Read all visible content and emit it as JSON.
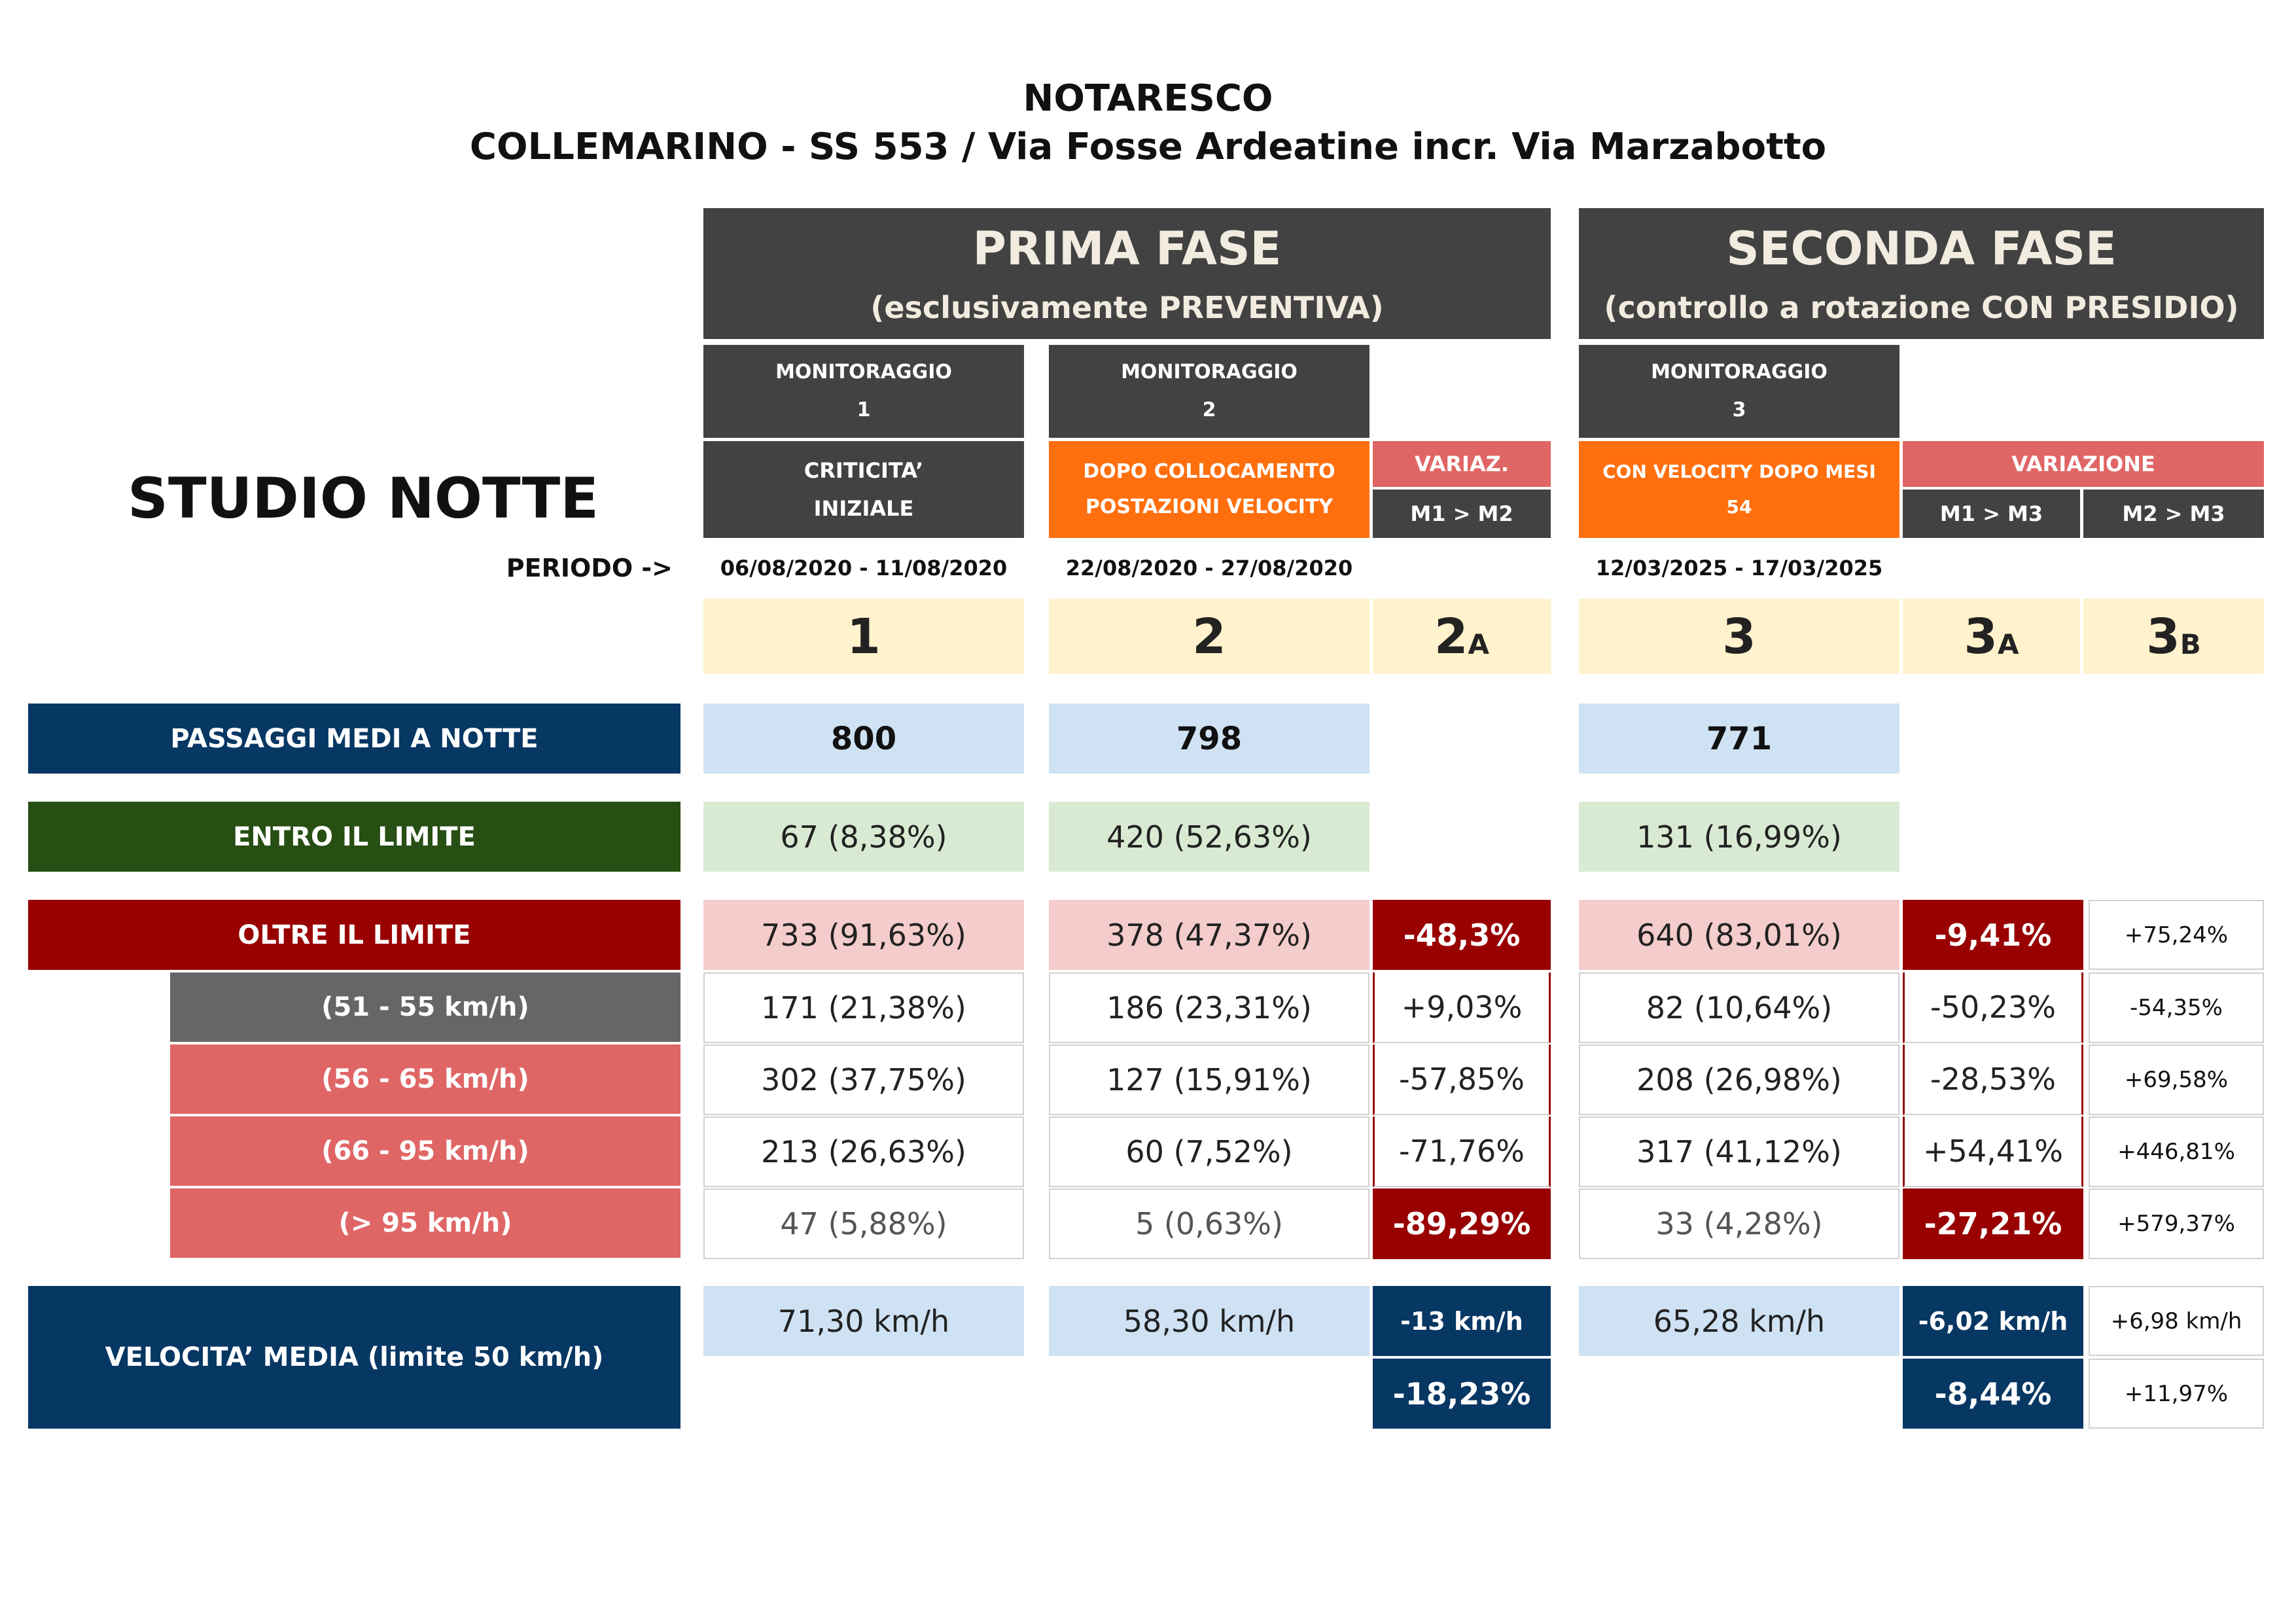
{
  "title": "NOTARESCO",
  "subtitle": "COLLEMARINO - SS 553 / Via Fosse Ardeatine incr. Via Marzabotto",
  "studio": "STUDIO NOTTE",
  "periodo_label": "PERIODO ->",
  "phase1": {
    "title": "PRIMA FASE",
    "sub": "(esclusivamente PREVENTIVA)"
  },
  "phase2": {
    "title": "SECONDA FASE",
    "sub": "(controllo a rotazione CON PRESIDIO)"
  },
  "mon1": {
    "label": "MONITORAGGIO",
    "num": "1",
    "desc1": "CRITICITA’",
    "desc2": "INIZIALE",
    "period": "06/08/2020 - 11/08/2020",
    "col": "1"
  },
  "mon2": {
    "label": "MONITORAGGIO",
    "num": "2",
    "desc1": "DOPO COLLOCAMENTO",
    "desc2": "POSTAZIONI VELOCITY",
    "period": "22/08/2020 - 27/08/2020",
    "col": "2"
  },
  "var2": {
    "label": "VARIAZ.",
    "sub": "M1 > M2",
    "col": "2",
    "sub_letter": "A"
  },
  "mon3": {
    "label": "MONITORAGGIO",
    "num": "3",
    "desc1": "CON VELOCITY DOPO MESI",
    "desc2": "54",
    "period": "12/03/2025 - 17/03/2025",
    "col": "3"
  },
  "var3": {
    "label": "VARIAZIONE",
    "subA": "M1 > M3",
    "subB": "M2 > M3",
    "colA": "3",
    "letterA": "A",
    "colB": "3",
    "letterB": "B"
  },
  "rows": {
    "passaggi": {
      "label": "PASSAGGI MEDI A NOTTE",
      "m1": "800",
      "m2": "798",
      "m3": "771"
    },
    "entro": {
      "label": "ENTRO IL LIMITE",
      "m1": "67 (8,38%)",
      "m2": "420 (52,63%)",
      "m3": "131 (16,99%)"
    },
    "oltre": {
      "label": "OLTRE IL LIMITE",
      "m1": "733 (91,63%)",
      "m2": "378 (47,37%)",
      "v2": "-48,3%",
      "m3": "640 (83,01%)",
      "v3a": "-9,41%",
      "v3b": "+75,24%"
    },
    "r51": {
      "label": "(51 - 55 km/h)",
      "m1": "171 (21,38%)",
      "m2": "186 (23,31%)",
      "v2": "+9,03%",
      "m3": "82 (10,64%)",
      "v3a": "-50,23%",
      "v3b": "-54,35%"
    },
    "r56": {
      "label": "(56 - 65 km/h)",
      "m1": "302 (37,75%)",
      "m2": "127 (15,91%)",
      "v2": "-57,85%",
      "m3": "208 (26,98%)",
      "v3a": "-28,53%",
      "v3b": "+69,58%"
    },
    "r66": {
      "label": "(66 - 95 km/h)",
      "m1": "213 (26,63%)",
      "m2": "60 (7,52%)",
      "v2": "-71,76%",
      "m3": "317 (41,12%)",
      "v3a": "+54,41%",
      "v3b": "+446,81%"
    },
    "r95": {
      "label": "(> 95 km/h)",
      "m1": "47 (5,88%)",
      "m2": "5 (0,63%)",
      "v2": "-89,29%",
      "m3": "33 (4,28%)",
      "v3a": "-27,21%",
      "v3b": "+579,37%"
    },
    "velocita": {
      "label": "VELOCITA’ MEDIA (limite 50 km/h)",
      "m1": "71,30 km/h",
      "m2": "58,30 km/h",
      "v2": "-13 km/h",
      "v2p": "-18,23%",
      "m3": "65,28 km/h",
      "v3a": "-6,02 km/h",
      "v3ap": "-8,44%",
      "v3b": "+6,98 km/h",
      "v3bp": "+11,97%"
    }
  },
  "colors": {
    "navy": "#073763",
    "dark_green": "#274e13",
    "dark_red": "#990000",
    "orange": "#ff6f0e",
    "pink": "#e06666",
    "cream": "#fff2cc",
    "light_blue": "#cfe2f3",
    "light_green": "#d9ead3",
    "light_red": "#f4cccc",
    "dark_grey": "#424242"
  }
}
